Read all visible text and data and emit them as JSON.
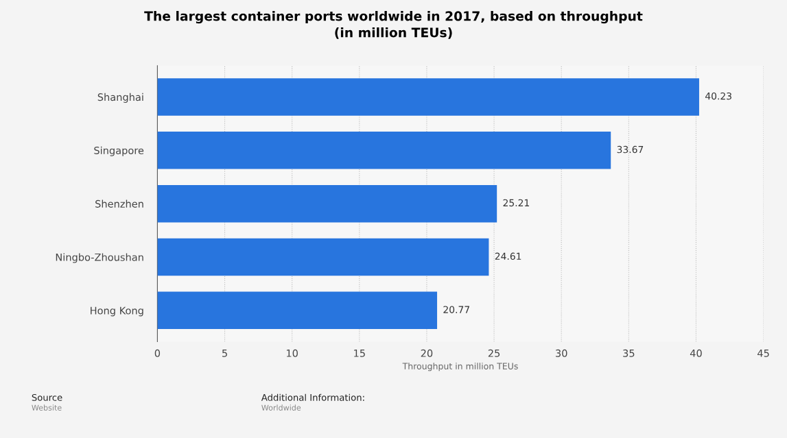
{
  "chart_data": {
    "type": "bar",
    "orientation": "horizontal",
    "title": "The largest container ports worldwide in 2017, based on throughput\n(in million TEUs)",
    "xlabel": "Throughput in million TEUs",
    "categories": [
      "Shanghai",
      "Singapore",
      "Shenzhen",
      "Ningbo-Zhoushan",
      "Hong Kong"
    ],
    "values": [
      40.23,
      33.67,
      25.21,
      24.61,
      20.77
    ],
    "color": "#2875de",
    "xlim": [
      0,
      45
    ],
    "xticks": [
      0,
      5,
      10,
      15,
      20,
      25,
      30,
      35,
      40,
      45
    ],
    "grid": "x",
    "data_labels": true,
    "annotations": [
      "Source",
      "Website",
      "Additional Information:",
      "Worldwide"
    ]
  }
}
